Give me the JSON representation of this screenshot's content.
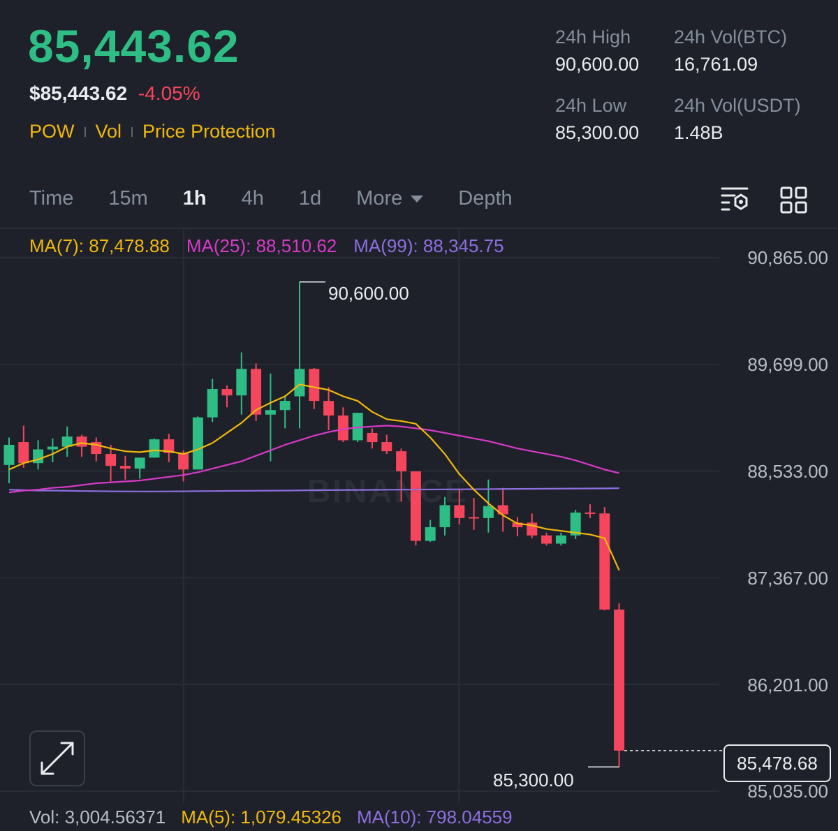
{
  "header": {
    "price": "85,443.62",
    "usd_price": "$85,443.62",
    "change": "-4.05%",
    "tags": [
      "POW",
      "Vol",
      "Price Protection"
    ]
  },
  "stats": {
    "high_label": "24h High",
    "high_value": "90,600.00",
    "vol_btc_label": "24h Vol(BTC)",
    "vol_btc_value": "16,761.09",
    "low_label": "24h Low",
    "low_value": "85,300.00",
    "vol_usdt_label": "24h Vol(USDT)",
    "vol_usdt_value": "1.48B"
  },
  "tabs": {
    "time": "Time",
    "m15": "15m",
    "h1": "1h",
    "h4": "4h",
    "d1": "1d",
    "more": "More",
    "depth": "Depth",
    "active": "1h"
  },
  "icons": [
    "indicator-settings-icon",
    "layout-grid-icon",
    "expand-icon",
    "caret-down-icon"
  ],
  "indicators": {
    "ma7": "MA(7): 87,478.88",
    "ma25": "MA(25): 88,510.62",
    "ma99": "MA(99): 88,345.75"
  },
  "volume": {
    "vol": "Vol: 3,004.56371",
    "ma5": "MA(5): 1,079.45326",
    "ma10": "MA(10): 798.04559"
  },
  "watermark": "BINANCE",
  "colors": {
    "up": "#2ebd85",
    "down": "#f6465d",
    "ma7": "#f0b90b",
    "ma25": "#d63ac6",
    "ma99": "#8d6fe0",
    "tag": "#f0b90b"
  },
  "chart_data": {
    "type": "candlestick",
    "interval": "1h",
    "y_ticks": [
      "90,865.00",
      "89,699.00",
      "88,533.00",
      "87,367.00",
      "86,201.00",
      "85,035.00"
    ],
    "y_tick_values": [
      90865,
      89699,
      88533,
      87367,
      86201,
      85035
    ],
    "ylim": [
      85035,
      90865
    ],
    "grid": true,
    "high_marker": {
      "label": "90,600.00",
      "value": 90600
    },
    "low_marker": {
      "label": "85,300.00",
      "value": 85300
    },
    "last_price": {
      "label": "85,478.68",
      "value": 85478.68
    },
    "candles": [
      [
        88600,
        88900,
        88400,
        88820
      ],
      [
        88850,
        89030,
        88570,
        88620
      ],
      [
        88620,
        88870,
        88550,
        88770
      ],
      [
        88770,
        88890,
        88630,
        88800
      ],
      [
        88800,
        89020,
        88690,
        88910
      ],
      [
        88910,
        88930,
        88690,
        88800
      ],
      [
        88850,
        88900,
        88640,
        88720
      ],
      [
        88720,
        88820,
        88420,
        88590
      ],
      [
        88590,
        88700,
        88440,
        88560
      ],
      [
        88560,
        88680,
        88450,
        88680
      ],
      [
        88680,
        88890,
        88680,
        88880
      ],
      [
        88880,
        88940,
        88630,
        88730
      ],
      [
        88730,
        88760,
        88420,
        88550
      ],
      [
        88550,
        89130,
        88550,
        89120
      ],
      [
        89120,
        89540,
        89070,
        89430
      ],
      [
        89430,
        89470,
        89230,
        89360
      ],
      [
        89360,
        89830,
        89150,
        89650
      ],
      [
        89650,
        89710,
        89080,
        89150
      ],
      [
        89150,
        89600,
        88640,
        89200
      ],
      [
        89200,
        89360,
        89000,
        89300
      ],
      [
        89350,
        90600,
        89000,
        89650
      ],
      [
        89650,
        89660,
        89210,
        89300
      ],
      [
        89300,
        89450,
        88980,
        89140
      ],
      [
        89140,
        89230,
        88850,
        88870
      ],
      [
        88870,
        89120,
        88850,
        89170
      ],
      [
        88950,
        89000,
        88780,
        88850
      ],
      [
        88850,
        88930,
        88720,
        88750
      ],
      [
        88750,
        88780,
        88200,
        88530
      ],
      [
        88530,
        88530,
        87720,
        87770
      ],
      [
        87770,
        88000,
        87760,
        87920
      ],
      [
        87920,
        88250,
        87830,
        88160
      ],
      [
        88160,
        88330,
        87950,
        88020
      ],
      [
        88030,
        88240,
        87890,
        88020
      ],
      [
        88020,
        88440,
        87860,
        88150
      ],
      [
        88160,
        88350,
        87870,
        88060
      ],
      [
        87970,
        88030,
        87820,
        87920
      ],
      [
        87970,
        88070,
        87800,
        87830
      ],
      [
        87830,
        87860,
        87720,
        87740
      ],
      [
        87740,
        87860,
        87720,
        87830
      ],
      [
        87830,
        88110,
        87790,
        88080
      ],
      [
        88080,
        88170,
        88020,
        88070
      ],
      [
        88070,
        88140,
        87010,
        87020
      ],
      [
        87020,
        87090,
        85300,
        85478.68
      ]
    ],
    "ma7": [
      88550,
      88620,
      88660,
      88720,
      88800,
      88840,
      88820,
      88780,
      88750,
      88740,
      88760,
      88750,
      88720,
      88770,
      88840,
      88950,
      89060,
      89200,
      89280,
      89350,
      89480,
      89450,
      89420,
      89350,
      89300,
      89180,
      89100,
      89080,
      89050,
      88900,
      88720,
      88500,
      88330,
      88180,
      88050,
      87960,
      87940,
      87900,
      87880,
      87860,
      87840,
      87800,
      87450
    ],
    "ma25": [
      88300,
      88320,
      88330,
      88350,
      88360,
      88380,
      88400,
      88410,
      88420,
      88430,
      88450,
      88470,
      88490,
      88520,
      88560,
      88600,
      88640,
      88700,
      88760,
      88820,
      88870,
      88920,
      88960,
      88990,
      89010,
      89020,
      89030,
      89020,
      89000,
      88980,
      88950,
      88920,
      88890,
      88860,
      88820,
      88780,
      88750,
      88720,
      88690,
      88650,
      88600,
      88550,
      88510
    ],
    "ma99": [
      88330,
      88325,
      88320,
      88320,
      88318,
      88315,
      88314,
      88312,
      88311,
      88310,
      88310,
      88311,
      88312,
      88314,
      88315,
      88316,
      88317,
      88318,
      88319,
      88320,
      88322,
      88324,
      88325,
      88326,
      88327,
      88328,
      88329,
      88330,
      88331,
      88332,
      88333,
      88334,
      88335,
      88336,
      88337,
      88338,
      88339,
      88340,
      88341,
      88342,
      88343,
      88344,
      88345.75
    ]
  }
}
